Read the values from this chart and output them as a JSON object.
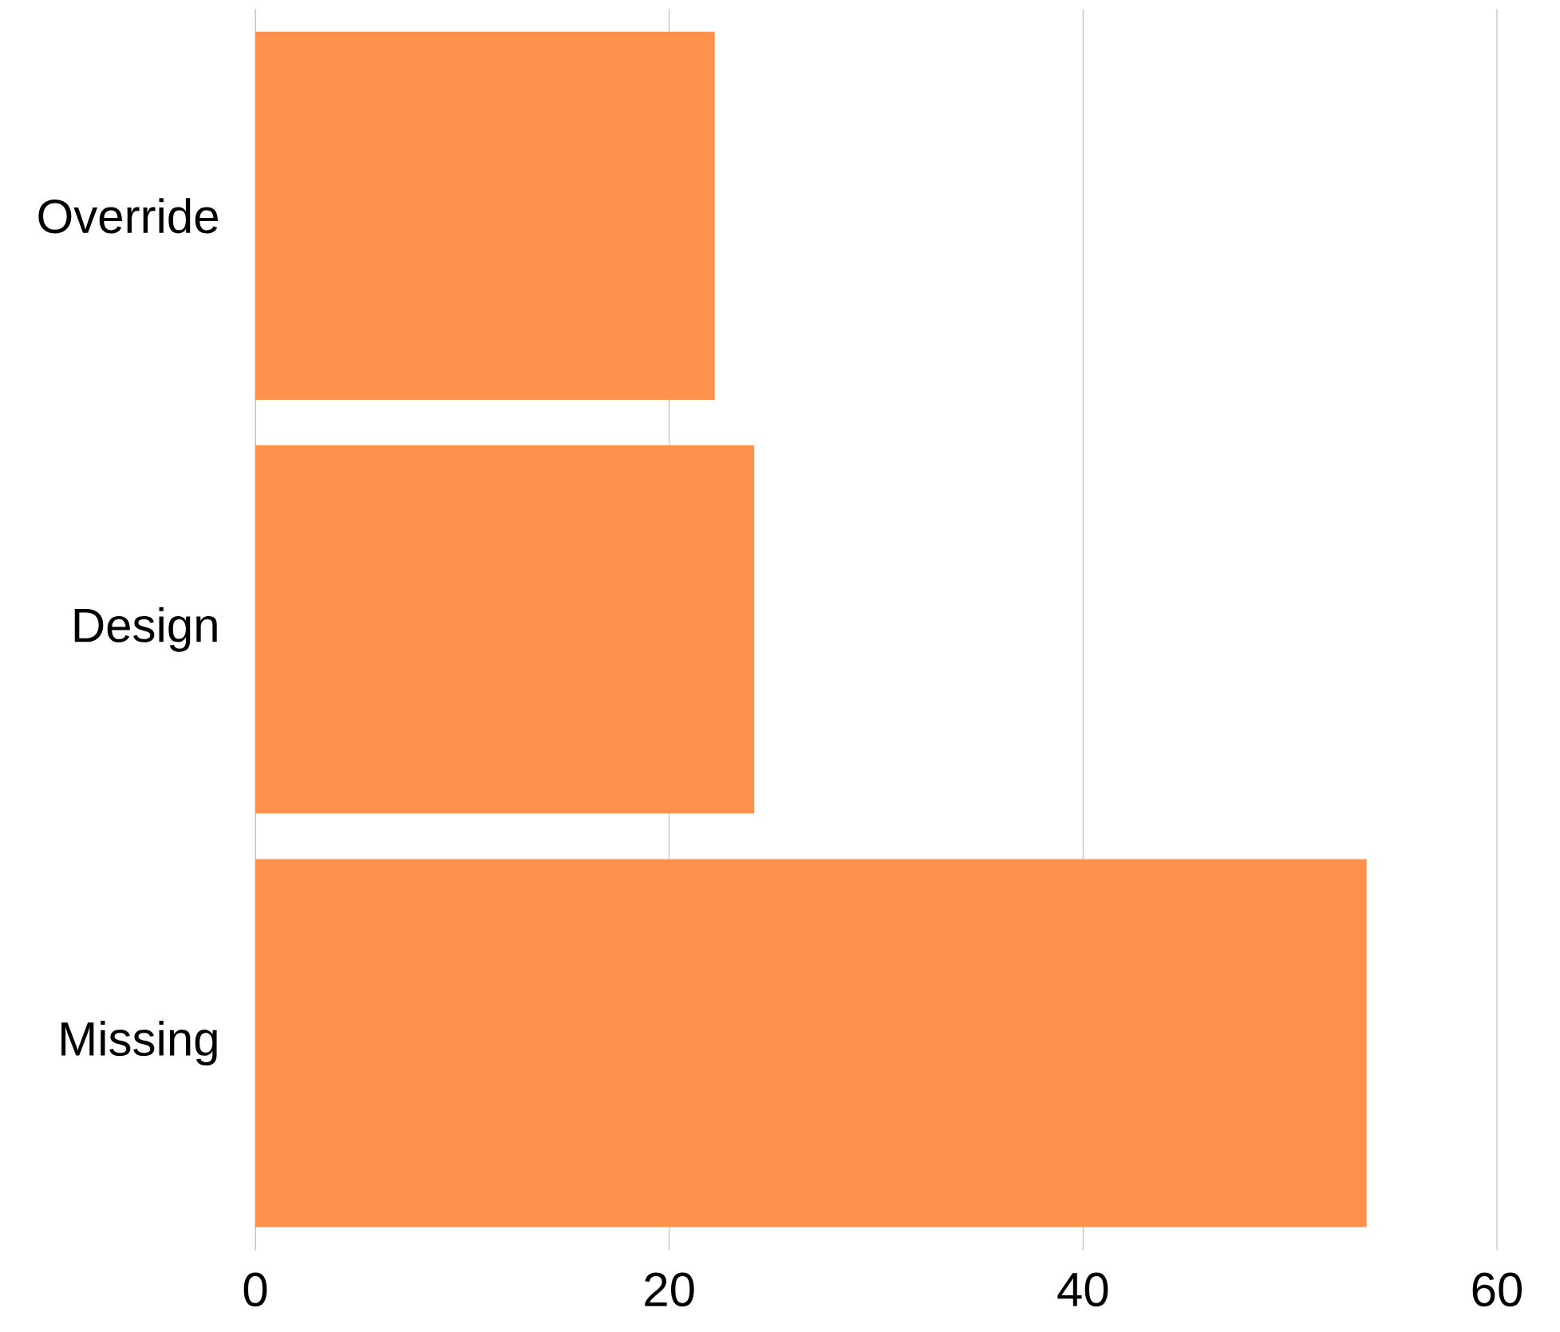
{
  "chart_data": {
    "type": "bar",
    "orientation": "horizontal",
    "categories": [
      "Override",
      "Design",
      "Missing"
    ],
    "values": [
      22.2,
      24.1,
      53.7
    ],
    "color": "#ff914d",
    "xlim": [
      0,
      60
    ],
    "xticks": [
      0,
      20,
      40,
      60
    ],
    "grid": "x"
  }
}
